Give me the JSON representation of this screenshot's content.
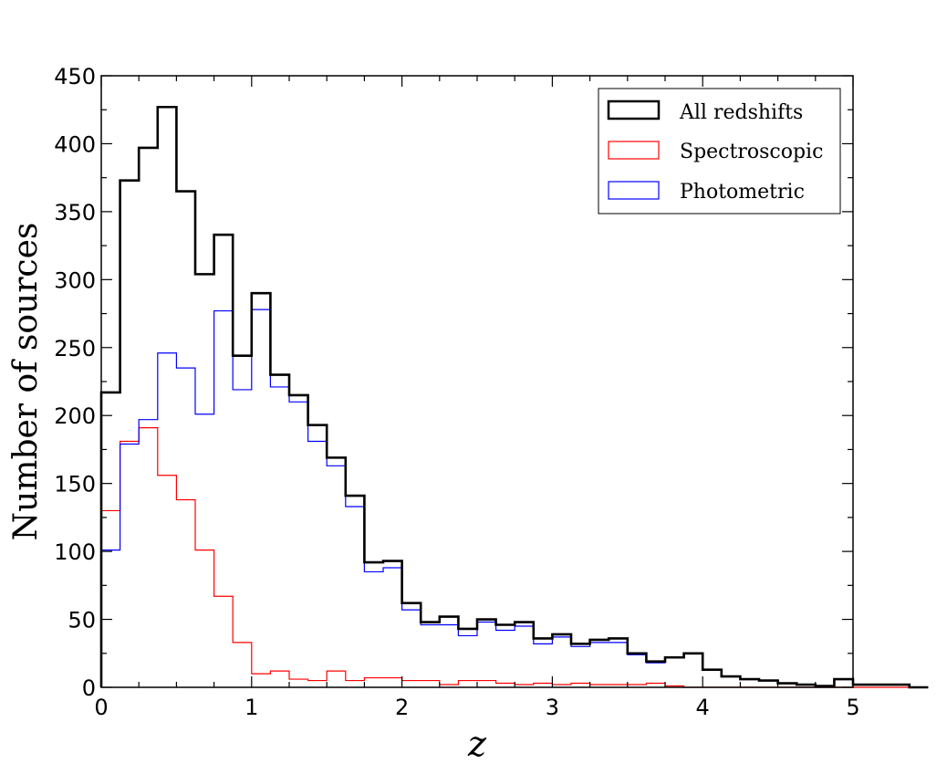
{
  "chart_data": {
    "type": "histogram",
    "title": "",
    "xlabel": "z",
    "ylabel": "Number of sources",
    "xlim": [
      0,
      5
    ],
    "ylim": [
      0,
      450
    ],
    "bin_width": 0.125,
    "bin_start": 0,
    "x_ticks": [
      0,
      1,
      2,
      3,
      4,
      5
    ],
    "y_ticks": [
      0,
      50,
      100,
      150,
      200,
      250,
      300,
      350,
      400,
      450
    ],
    "legend_position": "top-right",
    "series": [
      {
        "name": "All redshifts",
        "color": "#000000",
        "values": [
          217,
          373,
          397,
          427,
          365,
          304,
          333,
          244,
          290,
          230,
          215,
          193,
          169,
          141,
          92,
          93,
          62,
          48,
          52,
          43,
          50,
          46,
          48,
          36,
          39,
          32,
          35,
          36,
          25,
          19,
          22,
          25,
          13,
          8,
          6,
          5,
          3,
          2,
          1,
          6,
          2,
          2,
          2,
          0
        ]
      },
      {
        "name": "Spectroscopic",
        "color": "#ff0000",
        "values": [
          130,
          181,
          191,
          156,
          138,
          101,
          67,
          33,
          10,
          12,
          6,
          5,
          12,
          5,
          7,
          7,
          5,
          5,
          2,
          5,
          5,
          3,
          2,
          3,
          2,
          3,
          2,
          2,
          2,
          3,
          1,
          0,
          0,
          0,
          0,
          0,
          0,
          0,
          0,
          0,
          0,
          0,
          0,
          0
        ]
      },
      {
        "name": "Photometric",
        "color": "#0000ff",
        "values": [
          101,
          179,
          197,
          246,
          235,
          201,
          277,
          219,
          278,
          221,
          210,
          181,
          163,
          133,
          85,
          88,
          57,
          46,
          46,
          38,
          48,
          42,
          45,
          32,
          37,
          30,
          33,
          33,
          24,
          18,
          22,
          25,
          13,
          8,
          6,
          5,
          3,
          2,
          1,
          6,
          2,
          2,
          2,
          0
        ]
      }
    ]
  }
}
